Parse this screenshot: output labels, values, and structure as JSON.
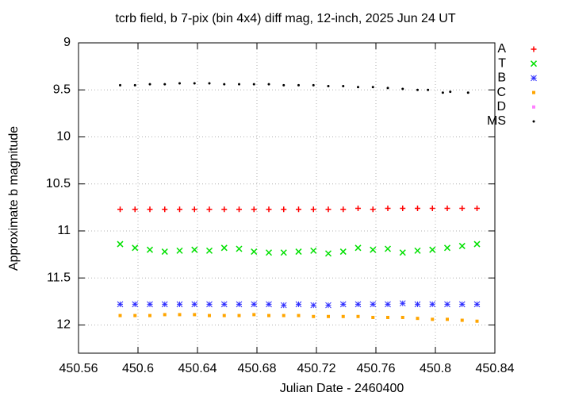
{
  "chart_data": {
    "type": "scatter",
    "title": "tcrb field, b 7-pix (bin 4x4) diff mag, 12-inch, 2025 Jun 24 UT",
    "x_label": "Julian Date - 2460400",
    "y_label": "Approximate b magnitude",
    "xlim": [
      450.56,
      450.84
    ],
    "xticks": [
      450.56,
      450.6,
      450.64,
      450.68,
      450.72,
      450.76,
      450.8,
      450.84
    ],
    "ylim": [
      9,
      12.3
    ],
    "yticks": [
      9,
      9.5,
      10,
      10.5,
      11,
      11.5,
      12
    ],
    "y_inverted": true,
    "grid": true,
    "legend": "outside-right",
    "x": [
      450.588,
      450.598,
      450.608,
      450.618,
      450.628,
      450.638,
      450.648,
      450.658,
      450.668,
      450.678,
      450.688,
      450.698,
      450.708,
      450.718,
      450.728,
      450.738,
      450.748,
      450.758,
      450.768,
      450.778,
      450.788,
      450.798,
      450.808,
      450.818,
      450.828
    ],
    "series": [
      {
        "name": "A",
        "color": "#ff0000",
        "marker": "plus",
        "values": [
          10.77,
          10.77,
          10.77,
          10.77,
          10.77,
          10.77,
          10.77,
          10.77,
          10.77,
          10.77,
          10.77,
          10.77,
          10.77,
          10.77,
          10.77,
          10.77,
          10.76,
          10.77,
          10.76,
          10.76,
          10.76,
          10.76,
          10.76,
          10.76,
          10.76
        ]
      },
      {
        "name": "T",
        "color": "#00e000",
        "marker": "cross",
        "values": [
          11.14,
          11.18,
          11.2,
          11.22,
          11.21,
          11.2,
          11.21,
          11.18,
          11.19,
          11.22,
          11.23,
          11.23,
          11.22,
          11.21,
          11.24,
          11.22,
          11.18,
          11.2,
          11.19,
          11.23,
          11.21,
          11.2,
          11.18,
          11.16,
          11.14
        ]
      },
      {
        "name": "B",
        "color": "#3030ff",
        "marker": "star",
        "values": [
          11.78,
          11.78,
          11.78,
          11.78,
          11.78,
          11.78,
          11.78,
          11.78,
          11.78,
          11.78,
          11.78,
          11.79,
          11.78,
          11.79,
          11.79,
          11.78,
          11.78,
          11.78,
          11.78,
          11.77,
          11.78,
          11.78,
          11.78,
          11.78,
          11.78
        ]
      },
      {
        "name": "C",
        "color": "#ffa500",
        "marker": "square",
        "values": [
          11.9,
          11.9,
          11.9,
          11.89,
          11.89,
          11.89,
          11.9,
          11.9,
          11.9,
          11.89,
          11.9,
          11.9,
          11.9,
          11.91,
          11.91,
          11.91,
          11.91,
          11.92,
          11.92,
          11.92,
          11.93,
          11.94,
          11.94,
          11.95,
          11.96
        ]
      },
      {
        "name": "D",
        "color": "#ff80ff",
        "marker": "square",
        "x": [],
        "values": []
      },
      {
        "name": "MS",
        "color": "#000000",
        "marker": "dot",
        "x": [
          450.588,
          450.598,
          450.608,
          450.618,
          450.628,
          450.638,
          450.648,
          450.658,
          450.668,
          450.678,
          450.688,
          450.698,
          450.708,
          450.718,
          450.728,
          450.738,
          450.748,
          450.758,
          450.768,
          450.778,
          450.788,
          450.795,
          450.805,
          450.81,
          450.822
        ],
        "values": [
          9.45,
          9.45,
          9.44,
          9.44,
          9.43,
          9.43,
          9.43,
          9.44,
          9.44,
          9.44,
          9.44,
          9.45,
          9.45,
          9.45,
          9.46,
          9.46,
          9.47,
          9.47,
          9.48,
          9.49,
          9.5,
          9.5,
          9.53,
          9.52,
          9.53
        ]
      }
    ]
  }
}
